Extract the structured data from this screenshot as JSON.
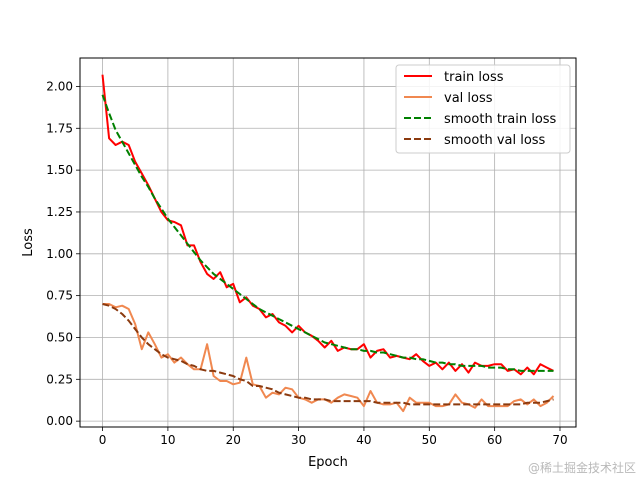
{
  "chart_data": {
    "type": "line",
    "xlabel": "Epoch",
    "ylabel": "Loss",
    "xlim": [
      -3.45,
      72.45
    ],
    "ylim": [
      -0.035,
      2.17
    ],
    "xticks": [
      0,
      10,
      20,
      30,
      40,
      50,
      60,
      70
    ],
    "yticks": [
      0.0,
      0.25,
      0.5,
      0.75,
      1.0,
      1.25,
      1.5,
      1.75,
      2.0
    ],
    "ytick_labels": [
      "0.00",
      "0.25",
      "0.50",
      "0.75",
      "1.00",
      "1.25",
      "1.50",
      "1.75",
      "2.00"
    ],
    "grid": true,
    "legend_position": "top-right",
    "x": [
      0,
      1,
      2,
      3,
      4,
      5,
      6,
      7,
      8,
      9,
      10,
      11,
      12,
      13,
      14,
      15,
      16,
      17,
      18,
      19,
      20,
      21,
      22,
      23,
      24,
      25,
      26,
      27,
      28,
      29,
      30,
      31,
      32,
      33,
      34,
      35,
      36,
      37,
      38,
      39,
      40,
      41,
      42,
      43,
      44,
      45,
      46,
      47,
      48,
      49,
      50,
      51,
      52,
      53,
      54,
      55,
      56,
      57,
      58,
      59,
      60,
      61,
      62,
      63,
      64,
      65,
      66,
      67,
      68,
      69
    ],
    "series": [
      {
        "name": "train loss",
        "color": "#ff0000",
        "dash": "solid",
        "values": [
          2.07,
          1.69,
          1.65,
          1.67,
          1.65,
          1.55,
          1.48,
          1.41,
          1.33,
          1.25,
          1.2,
          1.19,
          1.17,
          1.05,
          1.05,
          0.95,
          0.88,
          0.85,
          0.89,
          0.8,
          0.82,
          0.71,
          0.74,
          0.69,
          0.67,
          0.62,
          0.64,
          0.59,
          0.57,
          0.53,
          0.57,
          0.53,
          0.51,
          0.48,
          0.44,
          0.48,
          0.42,
          0.44,
          0.43,
          0.43,
          0.46,
          0.38,
          0.42,
          0.43,
          0.38,
          0.39,
          0.38,
          0.37,
          0.4,
          0.36,
          0.33,
          0.35,
          0.31,
          0.35,
          0.3,
          0.34,
          0.29,
          0.35,
          0.33,
          0.33,
          0.34,
          0.34,
          0.3,
          0.31,
          0.28,
          0.32,
          0.28,
          0.34,
          0.32,
          0.3
        ]
      },
      {
        "name": "val loss",
        "color": "#f08850",
        "dash": "solid",
        "values": [
          0.7,
          0.7,
          0.68,
          0.69,
          0.67,
          0.58,
          0.43,
          0.53,
          0.46,
          0.38,
          0.4,
          0.35,
          0.38,
          0.34,
          0.31,
          0.31,
          0.46,
          0.27,
          0.24,
          0.24,
          0.22,
          0.23,
          0.38,
          0.22,
          0.21,
          0.14,
          0.17,
          0.16,
          0.2,
          0.19,
          0.14,
          0.13,
          0.11,
          0.13,
          0.13,
          0.11,
          0.14,
          0.16,
          0.15,
          0.14,
          0.09,
          0.18,
          0.11,
          0.1,
          0.1,
          0.11,
          0.06,
          0.14,
          0.11,
          0.11,
          0.11,
          0.09,
          0.09,
          0.1,
          0.16,
          0.11,
          0.1,
          0.08,
          0.13,
          0.09,
          0.09,
          0.09,
          0.09,
          0.12,
          0.13,
          0.1,
          0.13,
          0.09,
          0.11,
          0.15
        ]
      },
      {
        "name": "smooth train loss",
        "color": "#008000",
        "dash": "dashed",
        "values": [
          1.95,
          1.84,
          1.74,
          1.67,
          1.6,
          1.53,
          1.46,
          1.4,
          1.33,
          1.27,
          1.21,
          1.16,
          1.11,
          1.06,
          1.01,
          0.96,
          0.92,
          0.88,
          0.85,
          0.82,
          0.79,
          0.76,
          0.73,
          0.7,
          0.67,
          0.65,
          0.63,
          0.61,
          0.59,
          0.57,
          0.55,
          0.53,
          0.51,
          0.49,
          0.47,
          0.46,
          0.45,
          0.44,
          0.43,
          0.43,
          0.42,
          0.42,
          0.41,
          0.41,
          0.4,
          0.39,
          0.38,
          0.38,
          0.37,
          0.37,
          0.36,
          0.35,
          0.35,
          0.34,
          0.34,
          0.33,
          0.33,
          0.33,
          0.33,
          0.32,
          0.32,
          0.32,
          0.31,
          0.31,
          0.3,
          0.3,
          0.3,
          0.3,
          0.3,
          0.3
        ]
      },
      {
        "name": "smooth val loss",
        "color": "#8b3a0f",
        "dash": "dashed",
        "values": [
          0.7,
          0.69,
          0.67,
          0.64,
          0.6,
          0.55,
          0.5,
          0.46,
          0.43,
          0.4,
          0.38,
          0.37,
          0.36,
          0.34,
          0.33,
          0.31,
          0.3,
          0.3,
          0.29,
          0.28,
          0.27,
          0.25,
          0.24,
          0.21,
          0.21,
          0.2,
          0.19,
          0.17,
          0.16,
          0.15,
          0.14,
          0.14,
          0.13,
          0.13,
          0.13,
          0.12,
          0.12,
          0.12,
          0.12,
          0.12,
          0.12,
          0.12,
          0.11,
          0.11,
          0.11,
          0.11,
          0.11,
          0.1,
          0.1,
          0.1,
          0.1,
          0.1,
          0.1,
          0.1,
          0.1,
          0.1,
          0.1,
          0.1,
          0.1,
          0.1,
          0.1,
          0.1,
          0.1,
          0.1,
          0.1,
          0.11,
          0.11,
          0.11,
          0.12,
          0.13
        ]
      }
    ]
  },
  "watermark": "@稀土掘金技术社区"
}
